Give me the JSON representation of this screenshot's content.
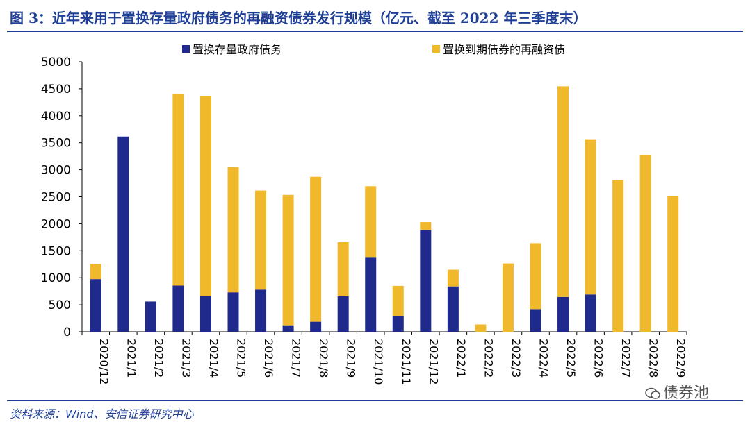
{
  "figure_title": "图 3：近年来用于置换存量政府债务的再融资债券发行规模（亿元、截至 2022 年三季度末）",
  "source_note": "资料来源：Wind、安信证券研究中心",
  "watermark": "债券池",
  "chart_data": {
    "type": "bar",
    "stacked": true,
    "categories": [
      "2020/12",
      "2021/1",
      "2021/2",
      "2021/3",
      "2021/4",
      "2021/5",
      "2021/6",
      "2021/7",
      "2021/8",
      "2021/9",
      "2021/10",
      "2021/11",
      "2021/12",
      "2022/1",
      "2022/2",
      "2022/3",
      "2022/4",
      "2022/5",
      "2022/6",
      "2022/7",
      "2022/8",
      "2022/9"
    ],
    "series": [
      {
        "name": "置换存量政府债务",
        "color": "#1f2a8c",
        "values": [
          975,
          3615,
          560,
          855,
          660,
          730,
          780,
          120,
          185,
          660,
          1385,
          285,
          1885,
          840,
          0,
          0,
          420,
          645,
          690,
          0,
          0,
          0
        ]
      },
      {
        "name": "置换到期债券的再融资债",
        "color": "#f0b92c",
        "values": [
          280,
          0,
          0,
          3545,
          3705,
          2325,
          1835,
          2415,
          2685,
          1000,
          1310,
          565,
          145,
          310,
          135,
          1265,
          1220,
          3900,
          2875,
          2810,
          3270,
          2510
        ]
      }
    ],
    "ylim": [
      0,
      5000
    ],
    "yticks": [
      0,
      500,
      1000,
      1500,
      2000,
      2500,
      3000,
      3500,
      4000,
      4500,
      5000
    ],
    "legend_position": "top",
    "grid": false
  }
}
